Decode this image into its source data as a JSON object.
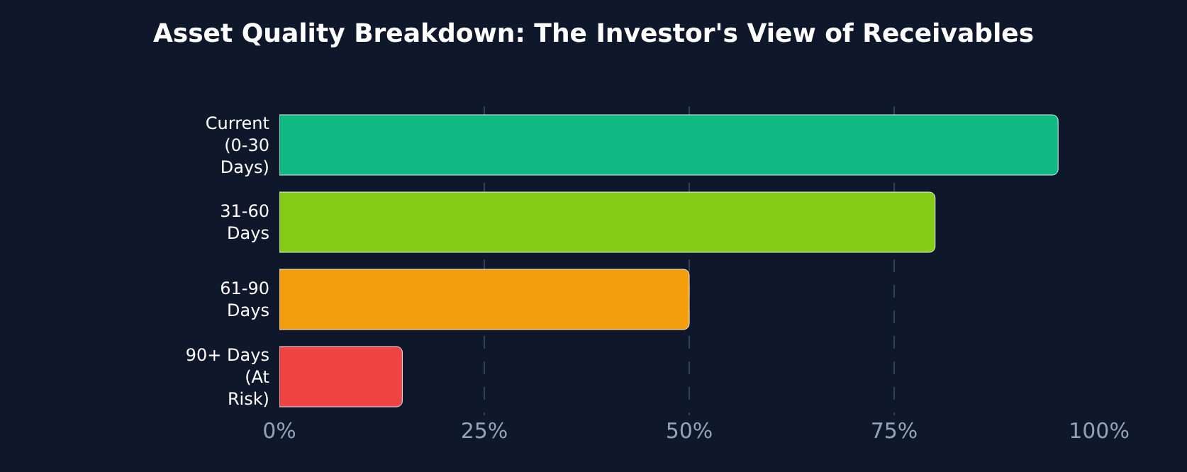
{
  "chart_data": {
    "type": "bar",
    "orientation": "horizontal",
    "title": "Asset Quality Breakdown: The Investor's View of Receivables",
    "categories": [
      "Current (0-30 Days)",
      "31-60 Days",
      "61-90 Days",
      "90+ Days (At Risk)"
    ],
    "values": [
      95,
      80,
      50,
      15
    ],
    "colors": [
      "#10b981",
      "#84cc16",
      "#f59e0b",
      "#ef4444"
    ],
    "xlim": [
      0,
      100
    ],
    "xticks": [
      {
        "value": 0,
        "label": "0%"
      },
      {
        "value": 25,
        "label": "25%"
      },
      {
        "value": 50,
        "label": "50%"
      },
      {
        "value": 75,
        "label": "75%"
      },
      {
        "value": 100,
        "label": "100%"
      }
    ],
    "grid": "x",
    "legend": false
  }
}
